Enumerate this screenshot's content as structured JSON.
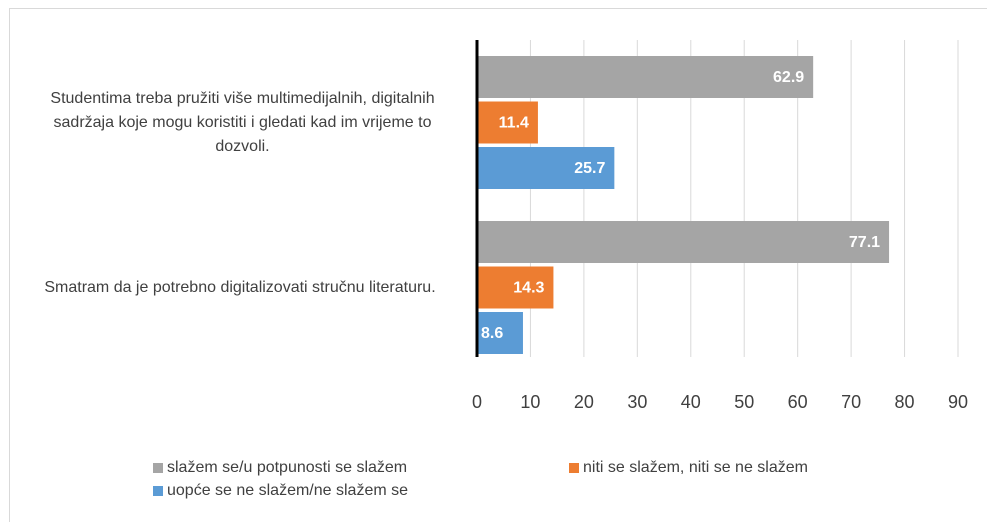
{
  "chart_data": {
    "type": "bar",
    "orientation": "horizontal",
    "categories": [
      "Studentima treba pružiti više multimedijalnih, digitalnih sadržaja koje mogu koristiti i gledati kad im vrijeme to dozvoli.",
      "Smatram da je potrebno digitalizovati stručnu literaturu."
    ],
    "series": [
      {
        "name": "slažem se/u potpunosti se slažem",
        "color": "#a5a5a5",
        "values": [
          62.9,
          77.1
        ]
      },
      {
        "name": "niti se slažem, niti se ne slažem",
        "color": "#ed7d31",
        "values": [
          11.4,
          14.3
        ]
      },
      {
        "name": "uopće se ne slažem/ne slažem se",
        "color": "#5b9bd5",
        "values": [
          25.7,
          8.6
        ]
      }
    ],
    "xlim": [
      0,
      90
    ],
    "xticks": [
      0,
      10,
      20,
      30,
      40,
      50,
      60,
      70,
      80,
      90
    ],
    "grid": true,
    "legend": "bottom"
  }
}
